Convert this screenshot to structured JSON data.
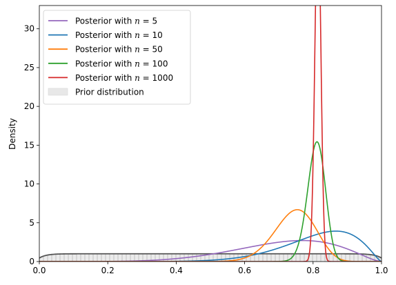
{
  "chart_data": {
    "type": "line",
    "title": "",
    "xlabel": "",
    "ylabel": "Density",
    "xlim": [
      0,
      1
    ],
    "ylim": [
      0,
      33
    ],
    "x_ticks": [
      0,
      0.2,
      0.4,
      0.6,
      0.8,
      1.0
    ],
    "x_tick_labels": [
      "0.0",
      "0.2",
      "0.4",
      "0.6",
      "0.8",
      "1.0"
    ],
    "y_ticks": [
      0,
      5,
      10,
      15,
      20,
      25,
      30
    ],
    "y_tick_labels": [
      "0",
      "5",
      "10",
      "15",
      "20",
      "25",
      "30"
    ],
    "grid": false,
    "legend_position": "top-left",
    "series": [
      {
        "name": "Posterior with n = 5",
        "legend_prefix": "Posterior with ",
        "legend_var": "n",
        "legend_eq": " = ",
        "legend_val": "5",
        "color": "#9467bd",
        "beta": [
          6.38,
          2.62
        ]
      },
      {
        "name": "Posterior with n = 10",
        "legend_prefix": "Posterior with ",
        "legend_var": "n",
        "legend_eq": " = ",
        "legend_val": "10",
        "color": "#1f77b4",
        "beta": [
          10.1,
          2.4
        ]
      },
      {
        "name": "Posterior with n = 50",
        "legend_prefix": "Posterior with ",
        "legend_var": "n",
        "legend_eq": " = ",
        "legend_val": "50",
        "color": "#ff7f0e",
        "beta": [
          39.3,
          13.5
        ]
      },
      {
        "name": "Posterior with n = 100",
        "legend_prefix": "Posterior with ",
        "legend_var": "n",
        "legend_eq": " = ",
        "legend_val": "100",
        "color": "#2ca02c",
        "beta": [
          186,
          44
        ]
      },
      {
        "name": "Posterior with n = 1000",
        "legend_prefix": "Posterior with ",
        "legend_var": "n",
        "legend_eq": " = ",
        "legend_val": "1000",
        "color": "#d62728",
        "beta": [
          1596,
          365
        ]
      }
    ],
    "prior": {
      "name": "Prior distribution",
      "fill_color": "#e8e8e8",
      "edge_color": "#555555",
      "hatch": "vertical",
      "density_plateau": 1.0
    }
  }
}
